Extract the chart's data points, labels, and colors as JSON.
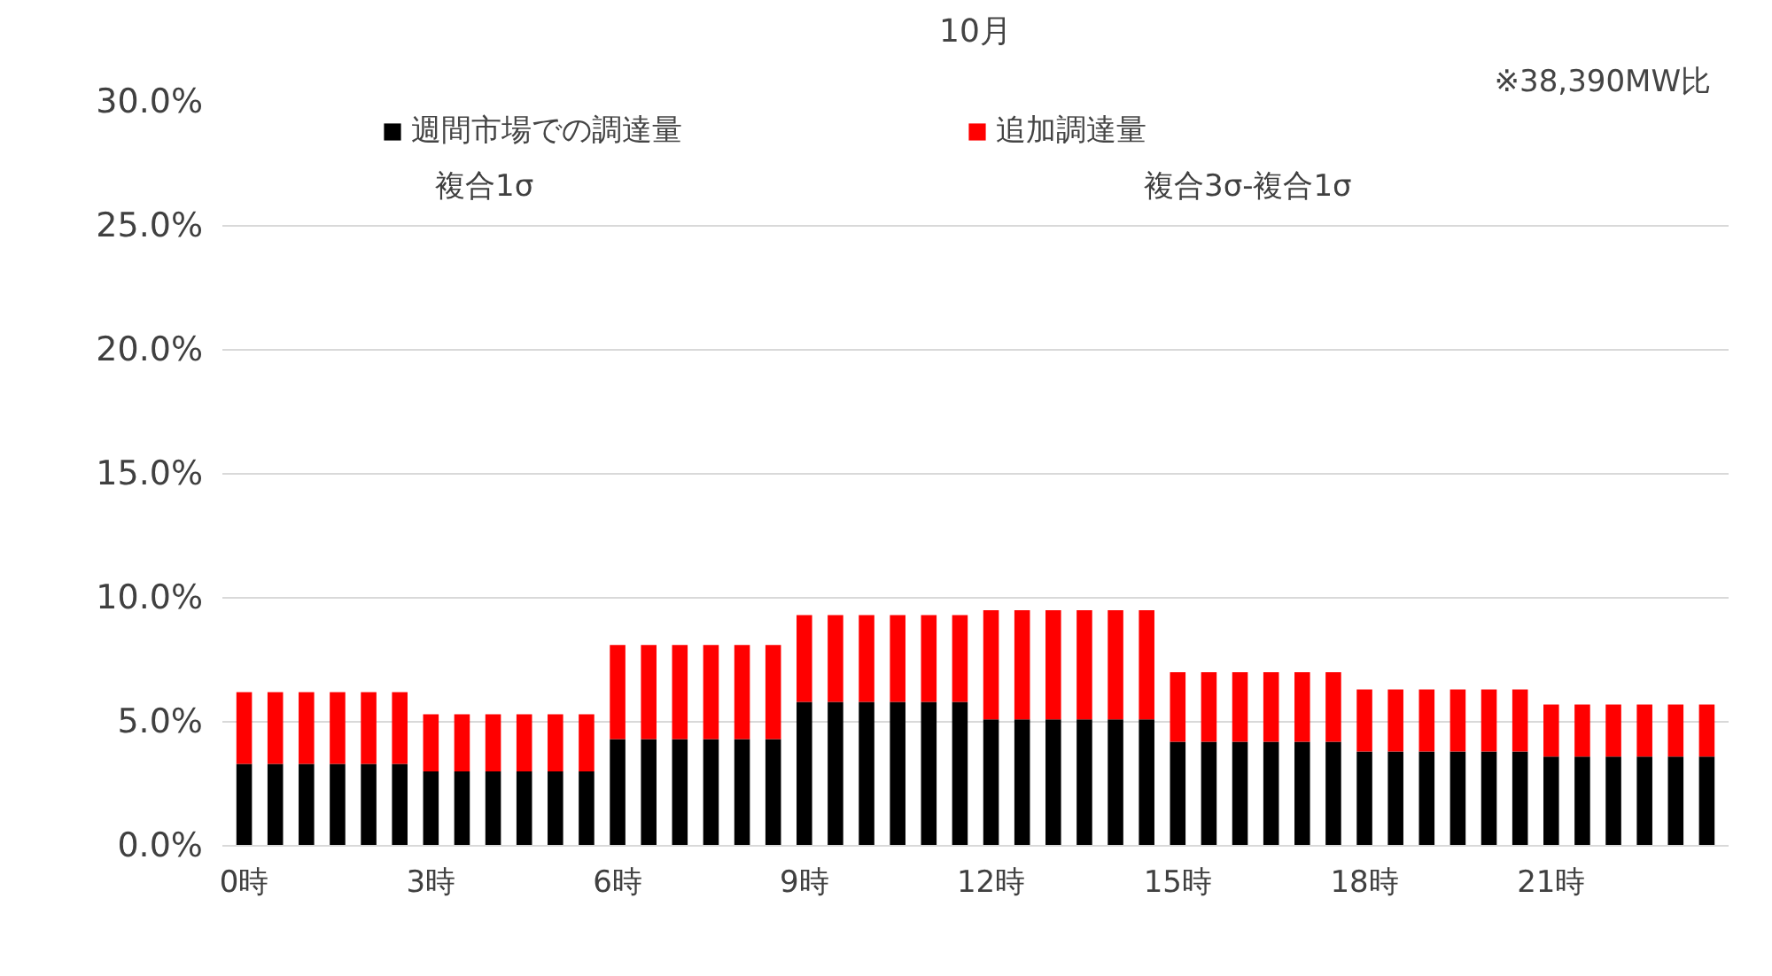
{
  "chart_data": {
    "type": "bar",
    "stacked": true,
    "title": "10月",
    "categories": [
      "0時",
      null,
      null,
      null,
      null,
      null,
      "3時",
      null,
      null,
      null,
      null,
      null,
      "6時",
      null,
      null,
      null,
      null,
      null,
      "9時",
      null,
      null,
      null,
      null,
      null,
      "12時",
      null,
      null,
      null,
      null,
      null,
      "15時",
      null,
      null,
      null,
      null,
      null,
      "18時",
      null,
      null,
      null,
      null,
      null,
      "21時",
      null,
      null,
      null,
      null,
      null
    ],
    "series": [
      {
        "name": "週間市場での調達量",
        "color": "#000000",
        "values": [
          3.3,
          3.3,
          3.3,
          3.3,
          3.3,
          3.3,
          3.0,
          3.0,
          3.0,
          3.0,
          3.0,
          3.0,
          4.3,
          4.3,
          4.3,
          4.3,
          4.3,
          4.3,
          5.8,
          5.8,
          5.8,
          5.8,
          5.8,
          5.8,
          5.1,
          5.1,
          5.1,
          5.1,
          5.1,
          5.1,
          4.2,
          4.2,
          4.2,
          4.2,
          4.2,
          4.2,
          3.8,
          3.8,
          3.8,
          3.8,
          3.8,
          3.8,
          3.6,
          3.6,
          3.6,
          3.6,
          3.6,
          3.6
        ]
      },
      {
        "name": "追加調達量",
        "color": "#ff0000",
        "values": [
          2.9,
          2.9,
          2.9,
          2.9,
          2.9,
          2.9,
          2.3,
          2.3,
          2.3,
          2.3,
          2.3,
          2.3,
          3.8,
          3.8,
          3.8,
          3.8,
          3.8,
          3.8,
          3.5,
          3.5,
          3.5,
          3.5,
          3.5,
          3.5,
          4.4,
          4.4,
          4.4,
          4.4,
          4.4,
          4.4,
          2.8,
          2.8,
          2.8,
          2.8,
          2.8,
          2.8,
          2.5,
          2.5,
          2.5,
          2.5,
          2.5,
          2.5,
          2.1,
          2.1,
          2.1,
          2.1,
          2.1,
          2.1
        ]
      }
    ],
    "ylim": [
      0,
      30
    ],
    "yticks": [
      {
        "value": 0,
        "label": "0.0%"
      },
      {
        "value": 5,
        "label": "5.0%"
      },
      {
        "value": 10,
        "label": "10.0%"
      },
      {
        "value": 15,
        "label": "15.0%"
      },
      {
        "value": 20,
        "label": "20.0%"
      },
      {
        "value": 25,
        "label": "25.0%"
      },
      {
        "value": 30,
        "label": "30.0%"
      }
    ],
    "grid": "y",
    "legend": "top",
    "annotations": [
      "複合1σ",
      "複合3σ-複合1σ",
      "※38,390MW比"
    ]
  }
}
